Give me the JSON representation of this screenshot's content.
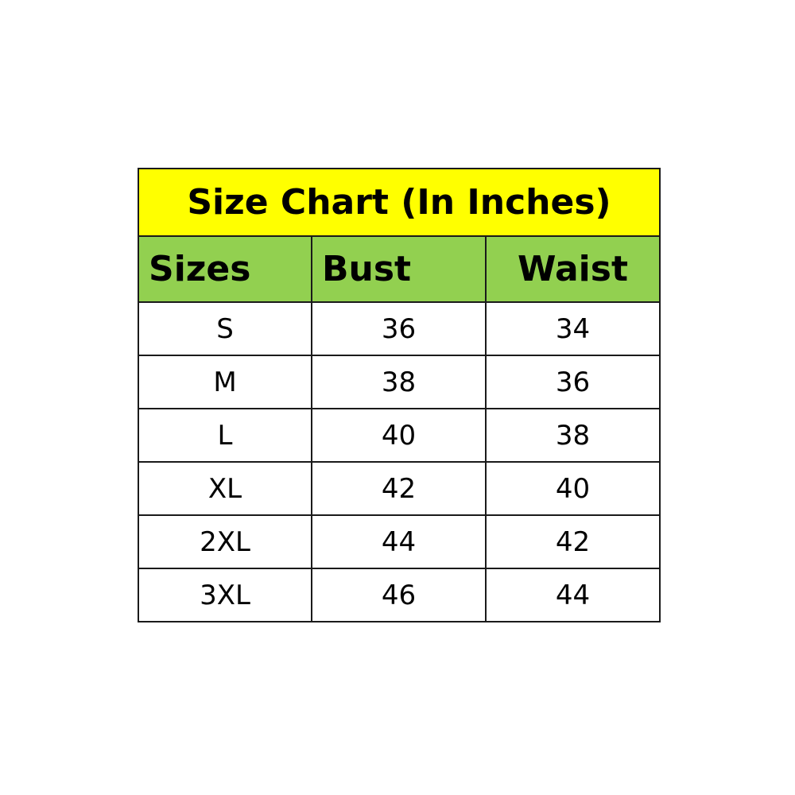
{
  "title": "Size Chart (In Inches)",
  "colors": {
    "title_bg": "#ffff00",
    "header_bg": "#92d050"
  },
  "columns": [
    "Sizes",
    "Bust",
    "Waist"
  ],
  "rows": [
    [
      "S",
      "36",
      "34"
    ],
    [
      "M",
      "38",
      "36"
    ],
    [
      "L",
      "40",
      "38"
    ],
    [
      "XL",
      "42",
      "40"
    ],
    [
      "2XL",
      "44",
      "42"
    ],
    [
      "3XL",
      "46",
      "44"
    ]
  ]
}
